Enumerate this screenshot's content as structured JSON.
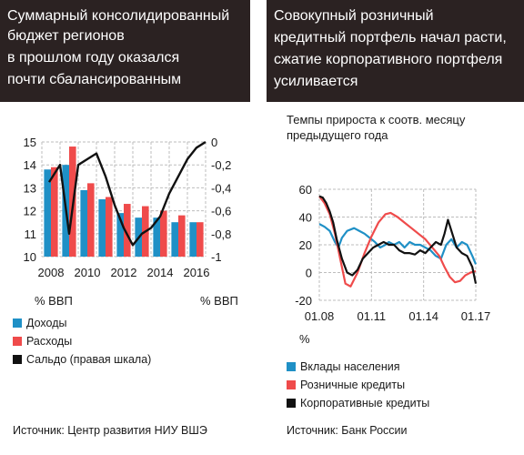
{
  "left": {
    "header_lines": [
      "Суммарный консолидированный",
      "бюджет регионов",
      "в прошлом году оказался",
      "почти сбалансированным"
    ],
    "left_axis_unit": "% ВВП",
    "right_axis_unit": "% ВВП",
    "legend": [
      {
        "label": "Доходы",
        "color": "#1f90c6"
      },
      {
        "label": "Расходы",
        "color": "#ef4b4b"
      },
      {
        "label": "Сальдо (правая шкала)",
        "color": "#111111"
      }
    ],
    "source": "Источник: Центр развития НИУ ВШЭ"
  },
  "right": {
    "header_lines": [
      "Совокупный розничный",
      "кредитный портфель начал расти,",
      "сжатие корпоративного портфеля",
      "усиливается"
    ],
    "subtitle_lines": [
      "Темпы прироста к соотв. месяцу",
      "предыдущего года"
    ],
    "y_unit": "%",
    "legend": [
      {
        "label": "Вклады населения",
        "color": "#1f90c6"
      },
      {
        "label": "Розничные кредиты",
        "color": "#ef4b4b"
      },
      {
        "label": "Корпоративные кредиты",
        "color": "#111111"
      }
    ],
    "source": "Источник: Банк России"
  },
  "chart_data": [
    {
      "type": "bar",
      "categories": [
        "2008",
        "2009",
        "2010",
        "2011",
        "2012",
        "2013",
        "2014",
        "2015",
        "2016"
      ],
      "x_tick_labels": [
        "2008",
        "2010",
        "2012",
        "2014",
        "2016"
      ],
      "series": [
        {
          "name": "Доходы",
          "values": [
            13.8,
            14.0,
            12.9,
            12.5,
            11.9,
            11.7,
            11.7,
            11.5,
            11.5
          ],
          "axis": "left",
          "color": "#1f90c6"
        },
        {
          "name": "Расходы",
          "values": [
            13.9,
            14.8,
            13.2,
            12.6,
            12.3,
            12.2,
            12.0,
            11.8,
            11.5
          ],
          "axis": "left",
          "color": "#ef4b4b"
        },
        {
          "name": "Сальдо (правая шкала)",
          "type": "line",
          "axis": "right",
          "color": "#111111",
          "x": [
            2007.9,
            2008.5,
            2009.0,
            2009.5,
            2010.0,
            2010.5,
            2011.0,
            2011.5,
            2012.0,
            2012.5,
            2013.0,
            2013.5,
            2014.0,
            2014.5,
            2015.0,
            2015.5,
            2016.0,
            2016.5
          ],
          "values": [
            -0.35,
            -0.2,
            -0.8,
            -0.2,
            -0.15,
            -0.1,
            -0.3,
            -0.55,
            -0.75,
            -0.9,
            -0.8,
            -0.75,
            -0.65,
            -0.45,
            -0.3,
            -0.15,
            -0.05,
            0.0
          ]
        }
      ],
      "ylim_left": [
        10,
        15
      ],
      "left_ticks": [
        "10",
        "11",
        "12",
        "13",
        "14",
        "15"
      ],
      "ylim_right": [
        -1.0,
        0.0
      ],
      "right_ticks": [
        "-1",
        "-0,8",
        "-0,6",
        "-0,4",
        "-0,2",
        "0"
      ],
      "grid": true
    },
    {
      "type": "line",
      "x_tick_labels": [
        "01.08",
        "01.11",
        "01.14",
        "01.17"
      ],
      "xlim": [
        2008.0,
        2017.0
      ],
      "ylim": [
        -20,
        60
      ],
      "y_ticks": [
        "-20",
        "0",
        "20",
        "40",
        "60"
      ],
      "grid": true,
      "series": [
        {
          "name": "Вклады населения",
          "color": "#1f90c6",
          "x": [
            2008.0,
            2008.3,
            2008.6,
            2008.9,
            2009.1,
            2009.3,
            2009.6,
            2010.0,
            2010.3,
            2010.6,
            2010.9,
            2011.2,
            2011.5,
            2011.8,
            2012.0,
            2012.3,
            2012.6,
            2012.9,
            2013.2,
            2013.5,
            2013.8,
            2014.1,
            2014.4,
            2014.7,
            2015.0,
            2015.3,
            2015.6,
            2015.9,
            2016.2,
            2016.5,
            2016.8,
            2017.0
          ],
          "values": [
            35,
            33,
            30,
            22,
            18,
            25,
            30,
            32,
            30,
            28,
            25,
            22,
            18,
            20,
            22,
            20,
            22,
            18,
            22,
            20,
            20,
            18,
            16,
            12,
            10,
            20,
            24,
            18,
            22,
            20,
            12,
            6
          ]
        },
        {
          "name": "Розничные кредиты",
          "color": "#ef4b4b",
          "x": [
            2008.0,
            2008.3,
            2008.6,
            2008.9,
            2009.2,
            2009.5,
            2009.8,
            2010.2,
            2010.6,
            2011.0,
            2011.4,
            2011.8,
            2012.1,
            2012.5,
            2012.9,
            2013.3,
            2013.7,
            2014.1,
            2014.5,
            2014.9,
            2015.2,
            2015.5,
            2015.8,
            2016.1,
            2016.4,
            2016.7,
            2017.0
          ],
          "values": [
            55,
            50,
            42,
            28,
            10,
            -8,
            -10,
            0,
            14,
            26,
            36,
            42,
            43,
            40,
            36,
            32,
            28,
            24,
            18,
            12,
            4,
            -3,
            -7,
            -6,
            -2,
            0,
            1
          ]
        },
        {
          "name": "Корпоративные кредиты",
          "color": "#111111",
          "x": [
            2008.0,
            2008.2,
            2008.4,
            2008.6,
            2008.8,
            2009.0,
            2009.3,
            2009.6,
            2009.9,
            2010.2,
            2010.5,
            2010.8,
            2011.1,
            2011.4,
            2011.7,
            2012.0,
            2012.3,
            2012.6,
            2012.9,
            2013.2,
            2013.5,
            2013.8,
            2014.1,
            2014.4,
            2014.7,
            2015.0,
            2015.2,
            2015.4,
            2015.6,
            2015.9,
            2016.2,
            2016.5,
            2016.8,
            2017.0
          ],
          "values": [
            55,
            54,
            50,
            44,
            36,
            24,
            10,
            0,
            -2,
            2,
            10,
            14,
            18,
            20,
            22,
            20,
            20,
            16,
            14,
            14,
            13,
            16,
            14,
            18,
            22,
            20,
            28,
            38,
            30,
            18,
            14,
            12,
            4,
            -8
          ]
        }
      ]
    }
  ]
}
